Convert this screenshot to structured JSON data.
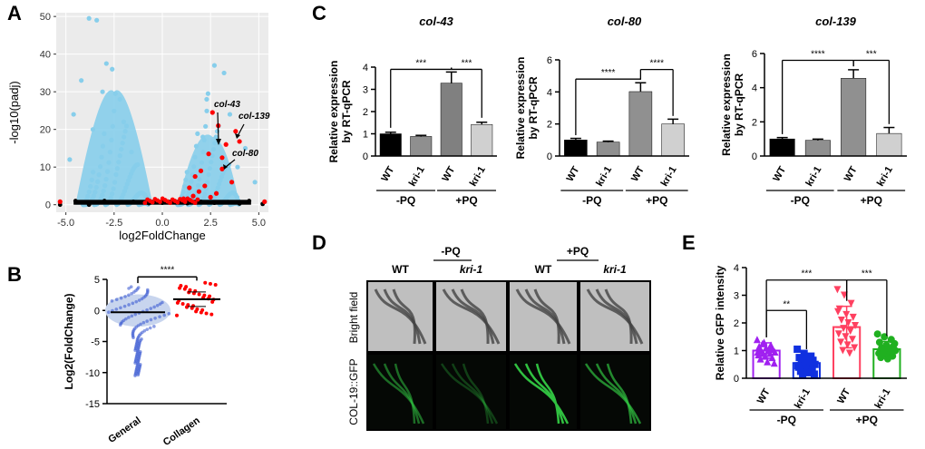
{
  "panels": {
    "a": "A",
    "b": "B",
    "c": "C",
    "d": "D",
    "e": "E"
  },
  "colors": {
    "sky": "#87ceeb",
    "red": "#ff0000",
    "black": "#000000",
    "purple": "#a020f0",
    "blue": "#1030e0",
    "salmon": "#ff4060",
    "green": "#20b020",
    "bar_black": "#000000",
    "bar_gray": "#8f8f8f",
    "bar_dark": "#808080",
    "bar_light": "#d0d0d0",
    "bar_mid": "#909090"
  },
  "chart_data": [
    {
      "id": "A",
      "type": "scatter",
      "xlabel": "log2FoldChange",
      "ylabel": "-log10(padj)",
      "xlim": [
        -5.5,
        5.5
      ],
      "ylim": [
        -2,
        51
      ],
      "xticks": [
        "-5.0",
        "-2.5",
        "0.0",
        "2.5",
        "5.0"
      ],
      "yticks": [
        "0",
        "10",
        "20",
        "30",
        "40",
        "50"
      ],
      "annotations": [
        "col-43",
        "col-139",
        "col-80"
      ],
      "series": [
        {
          "points": [
            [
              -3.8,
              49.5
            ],
            [
              -3.4,
              49.0
            ],
            [
              -2.9,
              37.5
            ],
            [
              -2.6,
              36.0
            ],
            [
              -4.2,
              33.0
            ],
            [
              -3.1,
              30.0
            ],
            [
              -2.2,
              28.0
            ],
            [
              -4.6,
              24.0
            ],
            [
              -2.0,
              22.0
            ],
            [
              -3.6,
              20.0
            ],
            [
              -1.6,
              14.0
            ],
            [
              -4.8,
              12.0
            ],
            [
              2.7,
              37.0
            ],
            [
              3.2,
              35.0
            ],
            [
              2.3,
              28.0
            ],
            [
              3.5,
              24.0
            ],
            [
              4.3,
              15.0
            ],
            [
              2.1,
              18.0
            ],
            [
              3.9,
              10.0
            ],
            [
              4.8,
              6.0
            ]
          ]
        },
        {
          "points": [
            [
              2.6,
              24.5
            ],
            [
              2.9,
              21.0
            ],
            [
              3.3,
              16.0
            ],
            [
              2.4,
              13.5
            ],
            [
              3.1,
              9.5
            ],
            [
              2.0,
              9.0
            ],
            [
              1.7,
              7.5
            ],
            [
              2.2,
              5.0
            ],
            [
              1.4,
              4.5
            ],
            [
              2.8,
              3.0
            ],
            [
              1.9,
              3.5
            ],
            [
              3.6,
              6.0
            ],
            [
              4.0,
              16.8
            ],
            [
              3.8,
              19.5
            ],
            [
              3.1,
              12.5
            ],
            [
              2.5,
              2.0
            ],
            [
              1.6,
              2.3
            ],
            [
              1.1,
              1.6
            ],
            [
              -5.3,
              0.8
            ],
            [
              5.3,
              0.8
            ]
          ]
        },
        {
          "points": [
            [
              -5.3,
              0.0
            ],
            [
              -4.5,
              1.0
            ],
            [
              -3.8,
              0.0
            ],
            [
              -3.0,
              1.0
            ],
            [
              -2.2,
              0.6
            ],
            [
              -1.5,
              0.8
            ],
            [
              -0.7,
              0.4
            ],
            [
              0.0,
              0.5
            ],
            [
              0.7,
              0.6
            ],
            [
              1.3,
              0.4
            ],
            [
              2.0,
              0.8
            ],
            [
              2.7,
              0.5
            ],
            [
              3.4,
              0.7
            ],
            [
              4.0,
              0.3
            ],
            [
              4.5,
              1.0
            ],
            [
              5.2,
              0.2
            ]
          ]
        }
      ]
    },
    {
      "id": "B",
      "type": "scatter",
      "ylabel": "Log2(FoldChange)",
      "categories": [
        "General",
        "Collagen"
      ],
      "ylim": [
        -15,
        5
      ],
      "yticks": [
        "5",
        "0",
        "-5",
        "-10",
        "-15"
      ],
      "significance": "****",
      "series": [
        {
          "name": "General",
          "mean": -0.3,
          "range": [
            -10.5,
            3.8
          ]
        },
        {
          "name": "Collagen",
          "mean": 1.8,
          "range": [
            -0.8,
            4.5
          ]
        }
      ]
    },
    {
      "id": "C1",
      "type": "bar",
      "title": "col-43",
      "ylabel": "Relative expression\nby RT-qPCR",
      "ylim": [
        0,
        4
      ],
      "yticks": [
        "0",
        "1",
        "2",
        "3",
        "4"
      ],
      "categories": [
        "WT",
        "kri-1",
        "WT",
        "kri-1"
      ],
      "groups": [
        "-PQ",
        "+PQ"
      ],
      "values": [
        1.0,
        0.88,
        3.28,
        1.42
      ],
      "errors": [
        0.07,
        0.05,
        0.5,
        0.1
      ],
      "brackets": [
        {
          "from": 0,
          "to": 2,
          "label": "***",
          "y": 3.9
        },
        {
          "from": 2,
          "to": 3,
          "label": "***",
          "y": 3.9
        }
      ]
    },
    {
      "id": "C2",
      "type": "bar",
      "title": "col-80",
      "ylabel": "Relative expression\nby RT-qPCR",
      "ylim": [
        0,
        6
      ],
      "yticks": [
        "0",
        "2",
        "4",
        "6"
      ],
      "categories": [
        "WT",
        "kri-1",
        "WT",
        "kri-1"
      ],
      "groups": [
        "-PQ",
        "+PQ"
      ],
      "values": [
        1.0,
        0.87,
        4.02,
        2.0
      ],
      "errors": [
        0.1,
        0.06,
        0.55,
        0.3
      ],
      "brackets": [
        {
          "from": 0,
          "to": 2,
          "label": "****",
          "y": 4.8
        },
        {
          "from": 2,
          "to": 3,
          "label": "****",
          "y": 5.4
        }
      ]
    },
    {
      "id": "C3",
      "type": "bar",
      "title": "col-139",
      "ylabel": "Relative expression\nby RT-qPCR",
      "ylim": [
        0,
        6
      ],
      "yticks": [
        "0",
        "2",
        "4",
        "6"
      ],
      "categories": [
        "WT",
        "kri-1",
        "WT",
        "kri-1"
      ],
      "groups": [
        "-PQ",
        "+PQ"
      ],
      "values": [
        1.0,
        0.92,
        4.55,
        1.32
      ],
      "errors": [
        0.08,
        0.07,
        0.5,
        0.35
      ],
      "brackets": [
        {
          "from": 0,
          "to": 2,
          "label": "****",
          "y": 5.6
        },
        {
          "from": 2,
          "to": 3,
          "label": "***",
          "y": 5.6
        }
      ]
    },
    {
      "id": "E",
      "type": "bar",
      "ylabel": "Relative GFP intensity",
      "ylim": [
        0,
        4
      ],
      "yticks": [
        "0",
        "1",
        "2",
        "3",
        "4"
      ],
      "categories": [
        "WT",
        "kri-1",
        "WT",
        "kri-1"
      ],
      "groups": [
        "-PQ",
        "+PQ"
      ],
      "values": [
        1.0,
        0.55,
        1.85,
        1.05
      ],
      "errors": [
        0.28,
        0.3,
        0.75,
        0.28
      ],
      "points": [
        [
          1.4,
          1.3,
          1.2,
          1.15,
          1.1,
          1.05,
          1.0,
          1.0,
          0.95,
          0.9,
          0.9,
          0.85,
          0.8,
          0.75,
          0.7,
          0.6,
          0.55,
          1.25,
          1.1,
          0.95
        ],
        [
          1.05,
          0.9,
          0.8,
          0.75,
          0.7,
          0.65,
          0.6,
          0.55,
          0.5,
          0.5,
          0.45,
          0.4,
          0.35,
          0.3,
          0.25,
          0.2,
          0.15,
          0.1,
          0.65,
          0.45
        ],
        [
          3.2,
          3.0,
          2.7,
          2.5,
          2.3,
          2.2,
          2.1,
          2.0,
          1.9,
          1.8,
          1.7,
          1.6,
          1.5,
          1.4,
          1.3,
          1.2,
          1.1,
          1.0,
          0.9,
          2.4
        ],
        [
          1.6,
          1.5,
          1.4,
          1.3,
          1.2,
          1.15,
          1.1,
          1.05,
          1.0,
          1.0,
          0.95,
          0.9,
          0.85,
          0.8,
          0.75,
          0.7,
          1.25,
          0.9
        ]
      ],
      "brackets": [
        {
          "from": 0,
          "to": 2,
          "label": "***",
          "y": 3.55
        },
        {
          "from": 2,
          "to": 3,
          "label": "***",
          "y": 3.55
        },
        {
          "from": 0,
          "to": 1,
          "label": "**",
          "y": 2.45
        }
      ]
    }
  ],
  "panel_d": {
    "col_labels": [
      "WT",
      "kri-1",
      "WT",
      "kri-1"
    ],
    "group_labels": [
      "-PQ",
      "+PQ"
    ],
    "row_labels": [
      "Bright field",
      "COL-19::GFP"
    ]
  }
}
